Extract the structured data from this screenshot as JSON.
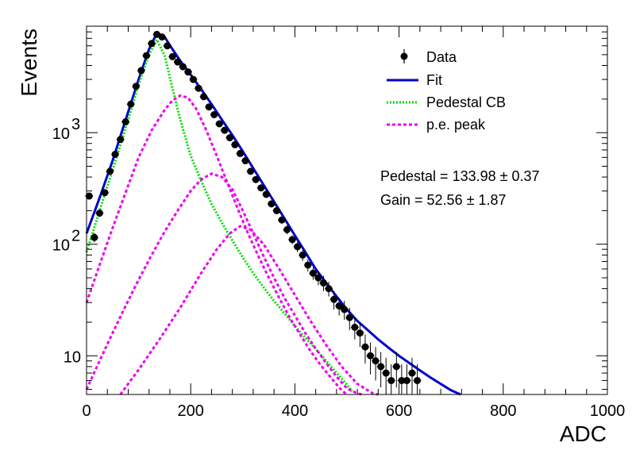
{
  "chart_data": {
    "type": "scatter",
    "xlabel": "ADC",
    "ylabel": "Events",
    "xlim": [
      0,
      1000
    ],
    "ylim": [
      4.5,
      9000
    ],
    "yscale": "log",
    "x_ticks": [
      0,
      200,
      400,
      600,
      800,
      1000
    ],
    "x_tick_labels": [
      "0",
      "200",
      "400",
      "600",
      "800",
      "1000"
    ],
    "y_ticks": [
      10,
      100,
      1000
    ],
    "y_tick_labels": [
      "10",
      "10",
      "10"
    ],
    "y_tick_exponents": [
      "",
      "2",
      "3"
    ],
    "grid": false,
    "legend_position": "top-right",
    "legend": [
      {
        "label": "Data",
        "style": "marker",
        "color": "#000000"
      },
      {
        "label": "Fit",
        "style": "solid",
        "color": "#0000cc"
      },
      {
        "label": "Pedestal CB",
        "style": "dotted",
        "color": "#00dd00"
      },
      {
        "label": "p.e. peak",
        "style": "dashed",
        "color": "#ee00ee"
      }
    ],
    "annotations": [
      "Pedestal = 133.98 ± 0.37",
      "Gain = 52.56 ± 1.87"
    ],
    "series": [
      {
        "name": "Data",
        "kind": "points",
        "color": "#000000",
        "x": [
          5,
          15,
          25,
          35,
          45,
          55,
          65,
          75,
          85,
          95,
          105,
          115,
          125,
          135,
          145,
          155,
          165,
          175,
          185,
          195,
          205,
          215,
          225,
          235,
          245,
          255,
          265,
          275,
          285,
          295,
          305,
          315,
          325,
          335,
          345,
          355,
          365,
          375,
          385,
          395,
          405,
          415,
          425,
          435,
          445,
          455,
          465,
          475,
          485,
          495,
          505,
          515,
          525,
          535,
          545,
          555,
          565,
          575,
          585,
          595,
          605,
          615,
          625,
          635
        ],
        "y": [
          270,
          115,
          190,
          290,
          450,
          640,
          870,
          1250,
          1800,
          2600,
          3600,
          4900,
          6300,
          7600,
          7200,
          6000,
          4800,
          4300,
          3900,
          3500,
          3000,
          2500,
          2100,
          1700,
          1450,
          1200,
          1050,
          900,
          780,
          650,
          560,
          450,
          380,
          320,
          280,
          230,
          200,
          165,
          135,
          110,
          95,
          80,
          65,
          55,
          50,
          45,
          40,
          32,
          28,
          26,
          22,
          18,
          16,
          12,
          10,
          9,
          8,
          7,
          6,
          8,
          6,
          6,
          7,
          6
        ],
        "yerr": [
          16,
          11,
          14,
          17,
          21,
          25,
          29,
          35,
          42,
          51,
          60,
          70,
          79,
          87,
          85,
          77,
          69,
          66,
          62,
          59,
          55,
          50,
          46,
          41,
          38,
          35,
          32,
          30,
          28,
          25,
          24,
          21,
          19,
          18,
          17,
          15,
          14,
          13,
          12,
          10,
          10,
          9,
          8,
          7,
          7,
          7,
          6,
          6,
          5,
          5,
          5,
          4,
          4,
          3.5,
          3.2,
          3,
          2.8,
          2.6,
          2.4,
          2.8,
          2.4,
          2.4,
          2.6,
          2.4
        ]
      },
      {
        "name": "Fit",
        "kind": "line",
        "color": "#0000cc",
        "x": [
          0,
          25,
          50,
          75,
          100,
          120,
          135,
          150,
          165,
          180,
          200,
          220,
          240,
          260,
          280,
          300,
          320,
          340,
          360,
          380,
          400,
          420,
          440,
          460,
          480,
          500,
          520,
          540,
          560,
          580,
          600,
          620,
          640,
          660,
          680,
          700,
          718
        ],
        "y": [
          125,
          260,
          560,
          1300,
          3000,
          5600,
          7800,
          7200,
          5600,
          4400,
          3300,
          2450,
          1800,
          1300,
          950,
          680,
          480,
          340,
          240,
          170,
          120,
          85,
          60,
          45,
          34,
          26,
          20.5,
          17,
          14,
          11.8,
          10,
          8.6,
          7.4,
          6.4,
          5.6,
          4.9,
          4.5
        ]
      },
      {
        "name": "Pedestal CB",
        "kind": "line",
        "color": "#00dd00",
        "x": [
          0,
          25,
          50,
          75,
          100,
          120,
          135,
          150,
          165,
          180,
          200,
          220,
          240,
          260,
          280,
          300,
          320,
          340,
          360,
          380,
          400,
          420,
          440,
          460,
          480,
          500,
          510
        ],
        "y": [
          85,
          200,
          460,
          1100,
          2700,
          5000,
          6800,
          4900,
          2500,
          1300,
          620,
          370,
          230,
          155,
          108,
          76,
          55,
          41,
          31,
          24,
          18.5,
          14.5,
          11.5,
          9,
          7,
          5.5,
          4.8
        ]
      },
      {
        "name": "p.e. peak 1",
        "kind": "line",
        "color": "#ee00ee",
        "x": [
          0,
          25,
          50,
          75,
          100,
          125,
          150,
          165,
          180,
          195,
          210,
          230,
          250,
          270,
          290,
          310,
          330,
          350,
          370,
          390,
          410,
          430,
          450,
          470,
          490,
          500
        ],
        "y": [
          30,
          65,
          140,
          290,
          600,
          1050,
          1600,
          1950,
          2150,
          2050,
          1650,
          1050,
          620,
          360,
          210,
          125,
          78,
          50,
          33,
          22,
          15.5,
          11,
          8.2,
          6.3,
          4.9,
          4.5
        ]
      },
      {
        "name": "p.e. peak 2",
        "kind": "line",
        "color": "#ee00ee",
        "x": [
          0,
          25,
          50,
          75,
          100,
          125,
          150,
          175,
          200,
          220,
          240,
          260,
          280,
          300,
          320,
          340,
          360,
          380,
          400,
          420,
          440,
          460,
          480,
          500,
          520,
          530
        ],
        "y": [
          5,
          9,
          16,
          28,
          48,
          80,
          130,
          200,
          300,
          380,
          430,
          400,
          310,
          200,
          125,
          78,
          50,
          33,
          23,
          16,
          11.6,
          8.6,
          6.5,
          5.1,
          4.6,
          4.5
        ]
      },
      {
        "name": "p.e. peak 3",
        "kind": "line",
        "color": "#ee00ee",
        "x": [
          65,
          100,
          140,
          180,
          220,
          250,
          275,
          295,
          315,
          340,
          370,
          400,
          430,
          460,
          490,
          520,
          550,
          560
        ],
        "y": [
          4.5,
          7.5,
          14,
          27,
          55,
          90,
          125,
          145,
          135,
          100,
          60,
          35,
          20.5,
          12.5,
          8,
          5.6,
          4.6,
          4.5
        ]
      }
    ]
  }
}
